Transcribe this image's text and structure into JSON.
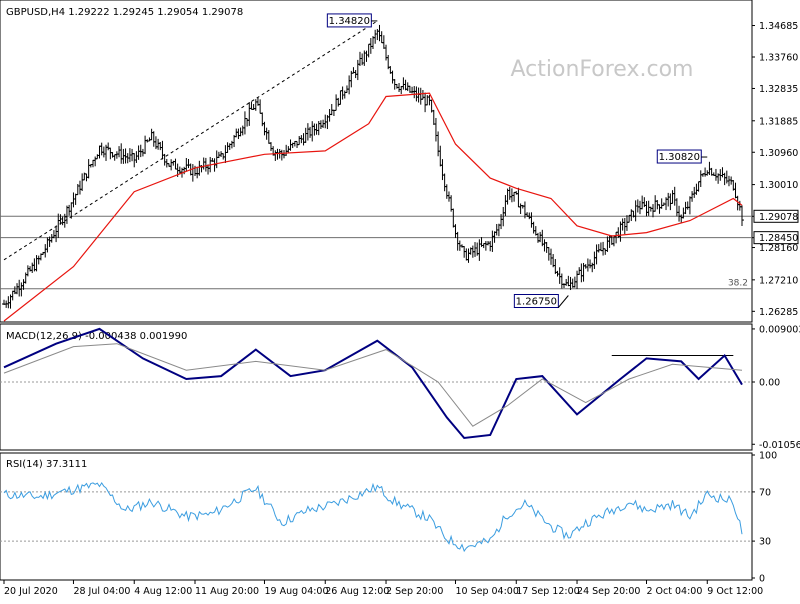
{
  "colors": {
    "price": "#000000",
    "ma": "#e8150f",
    "macd_line": "#000080",
    "macd_signal": "#8a8a8a",
    "rsi": "#3b9de0",
    "grid_level": "#6e6e6e",
    "label_border": "#000080",
    "watermark": "#c8c8c8"
  },
  "header": {
    "title": "GBPUSD,H4  1.29222 1.29245 1.29054 1.29078"
  },
  "watermark": "ActionForex.com",
  "chart_data": [
    {
      "type": "ohlc",
      "panel": "price",
      "symbol": "GBPUSD,H4",
      "ohlc_header": {
        "open": 1.29222,
        "high": 1.29245,
        "low": 1.29054,
        "close": 1.29078
      },
      "ylim": [
        1.2603,
        1.352
      ],
      "y_ticks": [
        "1.34685",
        "1.33760",
        "1.32835",
        "1.31885",
        "1.30960",
        "1.30010",
        "1.29078",
        "1.28450",
        "1.28160",
        "1.27210",
        "1.26285"
      ],
      "y_tick_values": [
        1.34685,
        1.3376,
        1.32835,
        1.31885,
        1.3096,
        1.3001,
        1.29078,
        1.2845,
        1.2816,
        1.2721,
        1.26285
      ],
      "current_price": {
        "value": 1.29078,
        "label": "1.29078"
      },
      "level_lines": [
        {
          "value": 1.29078,
          "label": "1.29078"
        },
        {
          "value": 1.2845,
          "label": "1.28450"
        },
        {
          "value": 1.2695,
          "label": "38.2"
        }
      ],
      "annotations": [
        {
          "label": "1.34820",
          "value": 1.3482,
          "date": "1 Sep 2020"
        },
        {
          "label": "1.30820",
          "value": 1.3082,
          "date": "9 Oct 2020"
        },
        {
          "label": "1.26750",
          "value": 1.2675,
          "date": "23 Sep 2020"
        }
      ],
      "trendline": {
        "from": {
          "date": "20 Jul 2020",
          "value": 1.278
        },
        "to": {
          "date": "1 Sep 2020",
          "value": 1.3482
        },
        "style": "dashed"
      },
      "series_closes": [
        {
          "date": "20 Jul 2020",
          "close": 1.265
        },
        {
          "date": "24 Jul 2020",
          "close": 1.278
        },
        {
          "date": "28 Jul 2020",
          "close": 1.296
        },
        {
          "date": "31 Jul 2020",
          "close": 1.311
        },
        {
          "date": "4 Aug 2020",
          "close": 1.3075
        },
        {
          "date": "6 Aug 2020",
          "close": 1.314
        },
        {
          "date": "8 Aug 2020",
          "close": 1.306
        },
        {
          "date": "11 Aug 2020",
          "close": 1.304
        },
        {
          "date": "14 Aug 2020",
          "close": 1.308
        },
        {
          "date": "18 Aug 2020",
          "close": 1.324
        },
        {
          "date": "20 Aug 2020",
          "close": 1.31
        },
        {
          "date": "21 Aug 2020",
          "close": 1.309
        },
        {
          "date": "25 Aug 2020",
          "close": 1.317
        },
        {
          "date": "27 Aug 2020",
          "close": 1.323
        },
        {
          "date": "31 Aug 2020",
          "close": 1.34
        },
        {
          "date": "1 Sep 2020",
          "close": 1.345
        },
        {
          "date": "3 Sep 2020",
          "close": 1.33
        },
        {
          "date": "7 Sep 2020",
          "close": 1.324
        },
        {
          "date": "8 Sep 2020",
          "close": 1.31
        },
        {
          "date": "9 Sep 2020",
          "close": 1.298
        },
        {
          "date": "10 Sep 2020",
          "close": 1.286
        },
        {
          "date": "11 Sep 2020",
          "close": 1.279
        },
        {
          "date": "14 Sep 2020",
          "close": 1.283
        },
        {
          "date": "15 Sep 2020",
          "close": 1.288
        },
        {
          "date": "16 Sep 2020",
          "close": 1.298
        },
        {
          "date": "17 Sep 2020",
          "close": 1.296
        },
        {
          "date": "18 Sep 2020",
          "close": 1.292
        },
        {
          "date": "21 Sep 2020",
          "close": 1.278
        },
        {
          "date": "22 Sep 2020",
          "close": 1.273
        },
        {
          "date": "23 Sep 2020",
          "close": 1.27
        },
        {
          "date": "25 Sep 2020",
          "close": 1.276
        },
        {
          "date": "28 Sep 2020",
          "close": 1.284
        },
        {
          "date": "30 Sep 2020",
          "close": 1.29
        },
        {
          "date": "1 Oct 2020",
          "close": 1.294
        },
        {
          "date": "2 Oct 2020",
          "close": 1.293
        },
        {
          "date": "5 Oct 2020",
          "close": 1.296
        },
        {
          "date": "6 Oct 2020",
          "close": 1.29
        },
        {
          "date": "7 Oct 2020",
          "close": 1.295
        },
        {
          "date": "8 Oct 2020",
          "close": 1.301
        },
        {
          "date": "9 Oct 2020",
          "close": 1.305
        },
        {
          "date": "12 Oct 2020",
          "close": 1.3
        },
        {
          "date": "13 Oct 2020",
          "close": 1.29078
        }
      ],
      "ma_values": [
        {
          "date": "20 Jul 2020",
          "value": 1.26
        },
        {
          "date": "28 Jul 2020",
          "value": 1.276
        },
        {
          "date": "4 Aug 2020",
          "value": 1.298
        },
        {
          "date": "11 Aug 2020",
          "value": 1.305
        },
        {
          "date": "19 Aug 2020",
          "value": 1.309
        },
        {
          "date": "26 Aug 2020",
          "value": 1.31
        },
        {
          "date": "31 Aug 2020",
          "value": 1.318
        },
        {
          "date": "2 Sep 2020",
          "value": 1.326
        },
        {
          "date": "7 Sep 2020",
          "value": 1.327
        },
        {
          "date": "10 Sep 2020",
          "value": 1.312
        },
        {
          "date": "14 Sep 2020",
          "value": 1.302
        },
        {
          "date": "17 Sep 2020",
          "value": 1.299
        },
        {
          "date": "21 Sep 2020",
          "value": 1.296
        },
        {
          "date": "24 Sep 2020",
          "value": 1.288
        },
        {
          "date": "28 Sep 2020",
          "value": 1.285
        },
        {
          "date": "2 Oct 2020",
          "value": 1.286
        },
        {
          "date": "7 Oct 2020",
          "value": 1.2895
        },
        {
          "date": "12 Oct 2020",
          "value": 1.296
        },
        {
          "date": "13 Oct 2020",
          "value": 1.294
        }
      ]
    },
    {
      "type": "line",
      "panel": "macd",
      "title": "MACD(12,26,9) -0.000438 0.001990",
      "ylim": [
        -0.0112,
        0.0095
      ],
      "y_ticks": [
        "0.009003",
        "0.00",
        "-0.010566"
      ],
      "y_tick_values": [
        0.009003,
        0.0,
        -0.010566
      ],
      "resistance_line": {
        "from": "28 Sep 2020",
        "to": "12 Oct 2020",
        "value": 0.0045
      },
      "series": [
        {
          "label": "macd",
          "points": [
            {
              "date": "20 Jul 2020",
              "value": 0.0025
            },
            {
              "date": "26 Jul 2020",
              "value": 0.0065
            },
            {
              "date": "31 Jul 2020",
              "value": 0.009
            },
            {
              "date": "5 Aug 2020",
              "value": 0.004
            },
            {
              "date": "10 Aug 2020",
              "value": 0.0005
            },
            {
              "date": "14 Aug 2020",
              "value": 0.001
            },
            {
              "date": "18 Aug 2020",
              "value": 0.0055
            },
            {
              "date": "22 Aug 2020",
              "value": 0.001
            },
            {
              "date": "26 Aug 2020",
              "value": 0.002
            },
            {
              "date": "1 Sep 2020",
              "value": 0.007
            },
            {
              "date": "5 Sep 2020",
              "value": 0.0025
            },
            {
              "date": "9 Sep 2020",
              "value": -0.006
            },
            {
              "date": "11 Sep 2020",
              "value": -0.0095
            },
            {
              "date": "14 Sep 2020",
              "value": -0.009
            },
            {
              "date": "17 Sep 2020",
              "value": 0.0005
            },
            {
              "date": "20 Sep 2020",
              "value": 0.001
            },
            {
              "date": "24 Sep 2020",
              "value": -0.0055
            },
            {
              "date": "29 Sep 2020",
              "value": 0.0005
            },
            {
              "date": "2 Oct 2020",
              "value": 0.004
            },
            {
              "date": "6 Oct 2020",
              "value": 0.0035
            },
            {
              "date": "8 Oct 2020",
              "value": 0.0005
            },
            {
              "date": "11 Oct 2020",
              "value": 0.0045
            },
            {
              "date": "13 Oct 2020",
              "value": -0.000438
            }
          ]
        },
        {
          "label": "signal",
          "points": [
            {
              "date": "20 Jul 2020",
              "value": 0.0015
            },
            {
              "date": "28 Jul 2020",
              "value": 0.006
            },
            {
              "date": "2 Aug 2020",
              "value": 0.0065
            },
            {
              "date": "10 Aug 2020",
              "value": 0.002
            },
            {
              "date": "18 Aug 2020",
              "value": 0.0035
            },
            {
              "date": "26 Aug 2020",
              "value": 0.002
            },
            {
              "date": "2 Sep 2020",
              "value": 0.0055
            },
            {
              "date": "8 Sep 2020",
              "value": 0.0
            },
            {
              "date": "12 Sep 2020",
              "value": -0.0075
            },
            {
              "date": "16 Sep 2020",
              "value": -0.004
            },
            {
              "date": "20 Sep 2020",
              "value": 0.0005
            },
            {
              "date": "25 Sep 2020",
              "value": -0.0035
            },
            {
              "date": "30 Sep 2020",
              "value": 0.0005
            },
            {
              "date": "5 Oct 2020",
              "value": 0.003
            },
            {
              "date": "9 Oct 2020",
              "value": 0.0025
            },
            {
              "date": "13 Oct 2020",
              "value": 0.00199
            }
          ]
        }
      ]
    },
    {
      "type": "line",
      "panel": "rsi",
      "title": "RSI(14) 37.3111",
      "ylim": [
        0,
        100
      ],
      "y_ticks": [
        "100",
        "70",
        "30",
        "0"
      ],
      "y_tick_values": [
        100,
        70,
        30,
        0
      ],
      "levels": [
        70,
        30
      ],
      "series": [
        {
          "label": "rsi",
          "points": [
            {
              "date": "20 Jul 2020",
              "value": 68
            },
            {
              "date": "24 Jul 2020",
              "value": 66
            },
            {
              "date": "28 Jul 2020",
              "value": 72
            },
            {
              "date": "31 Jul 2020",
              "value": 76
            },
            {
              "date": "3 Aug 2020",
              "value": 55
            },
            {
              "date": "6 Aug 2020",
              "value": 62
            },
            {
              "date": "10 Aug 2020",
              "value": 50
            },
            {
              "date": "13 Aug 2020",
              "value": 52
            },
            {
              "date": "18 Aug 2020",
              "value": 73
            },
            {
              "date": "21 Aug 2020",
              "value": 45
            },
            {
              "date": "24 Aug 2020",
              "value": 55
            },
            {
              "date": "27 Aug 2020",
              "value": 60
            },
            {
              "date": "1 Sep 2020",
              "value": 74
            },
            {
              "date": "3 Sep 2020",
              "value": 62
            },
            {
              "date": "7 Sep 2020",
              "value": 48
            },
            {
              "date": "9 Sep 2020",
              "value": 32
            },
            {
              "date": "11 Sep 2020",
              "value": 25
            },
            {
              "date": "14 Sep 2020",
              "value": 30
            },
            {
              "date": "16 Sep 2020",
              "value": 52
            },
            {
              "date": "18 Sep 2020",
              "value": 60
            },
            {
              "date": "21 Sep 2020",
              "value": 42
            },
            {
              "date": "23 Sep 2020",
              "value": 34
            },
            {
              "date": "25 Sep 2020",
              "value": 45
            },
            {
              "date": "28 Sep 2020",
              "value": 55
            },
            {
              "date": "30 Sep 2020",
              "value": 62
            },
            {
              "date": "2 Oct 2020",
              "value": 55
            },
            {
              "date": "5 Oct 2020",
              "value": 60
            },
            {
              "date": "7 Oct 2020",
              "value": 50
            },
            {
              "date": "9 Oct 2020",
              "value": 68
            },
            {
              "date": "12 Oct 2020",
              "value": 62
            },
            {
              "date": "13 Oct 2020",
              "value": 37.3111
            }
          ]
        }
      ]
    }
  ],
  "x_axis": {
    "ticks": [
      {
        "label": "20 Jul 2020",
        "date": "20 Jul 2020"
      },
      {
        "label": "28 Jul 04:00",
        "date": "28 Jul 2020"
      },
      {
        "label": "4 Aug 12:00",
        "date": "4 Aug 2020"
      },
      {
        "label": "11 Aug 20:00",
        "date": "11 Aug 2020"
      },
      {
        "label": "19 Aug 04:00",
        "date": "19 Aug 2020"
      },
      {
        "label": "26 Aug 12:00",
        "date": "26 Aug 2020"
      },
      {
        "label": "2 Sep 20:00",
        "date": "2 Sep 2020"
      },
      {
        "label": "10 Sep 04:00",
        "date": "10 Sep 2020"
      },
      {
        "label": "17 Sep 12:00",
        "date": "17 Sep 2020"
      },
      {
        "label": "24 Sep 20:00",
        "date": "24 Sep 2020"
      },
      {
        "label": "2 Oct 04:00",
        "date": "2 Oct 2020"
      },
      {
        "label": "9 Oct 12:00",
        "date": "9 Oct 2020"
      }
    ]
  }
}
